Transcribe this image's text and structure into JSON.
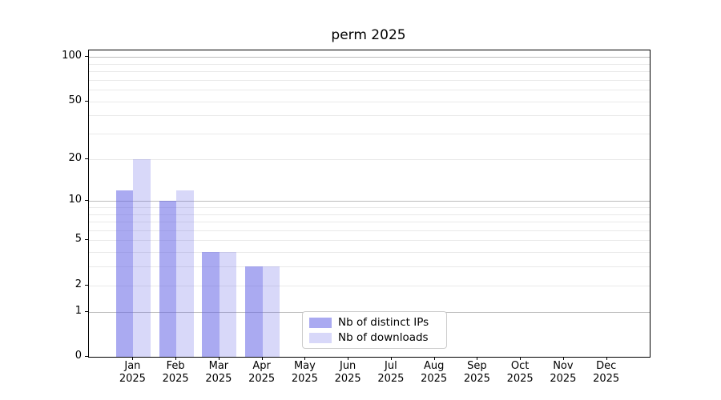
{
  "title": "perm 2025",
  "colors": {
    "ips": "rgba(100,100,230,0.55)",
    "downloads": "rgba(100,100,230,0.25)",
    "grid_major": "#bbbbbb",
    "grid_minor": "#e9e9e9",
    "axis": "#000000",
    "legend_border": "#cccccc"
  },
  "legend": {
    "items": [
      {
        "label": "Nb of distinct IPs",
        "series": "ips"
      },
      {
        "label": "Nb of downloads",
        "series": "downloads"
      }
    ]
  },
  "y_axis": {
    "scale": "log1p",
    "tick_labels": [
      0,
      1,
      2,
      5,
      10,
      20,
      50,
      100
    ],
    "major_gridlines": [
      1,
      10,
      100
    ],
    "minor_gridlines": [
      2,
      3,
      4,
      5,
      6,
      7,
      8,
      9,
      20,
      30,
      40,
      50,
      60,
      70,
      80,
      90
    ]
  },
  "chart_data": {
    "type": "bar",
    "title": "perm 2025",
    "categories": [
      "Jan 2025",
      "Feb 2025",
      "Mar 2025",
      "Apr 2025",
      "May 2025",
      "Jun 2025",
      "Jul 2025",
      "Aug 2025",
      "Sep 2025",
      "Oct 2025",
      "Nov 2025",
      "Dec 2025"
    ],
    "series": [
      {
        "name": "Nb of distinct IPs",
        "color_key": "ips",
        "values": [
          12,
          10,
          4,
          3,
          0,
          0,
          0,
          0,
          0,
          0,
          0,
          0
        ]
      },
      {
        "name": "Nb of downloads",
        "color_key": "downloads",
        "values": [
          20,
          12,
          4,
          3,
          0,
          0,
          0,
          0,
          0,
          0,
          0,
          0
        ]
      }
    ],
    "yscale": "log1p",
    "y_ticks": [
      0,
      1,
      2,
      5,
      10,
      20,
      50,
      100
    ],
    "ylim": [
      0,
      113
    ],
    "grid": "horizontal",
    "legend_position": "lower center"
  }
}
